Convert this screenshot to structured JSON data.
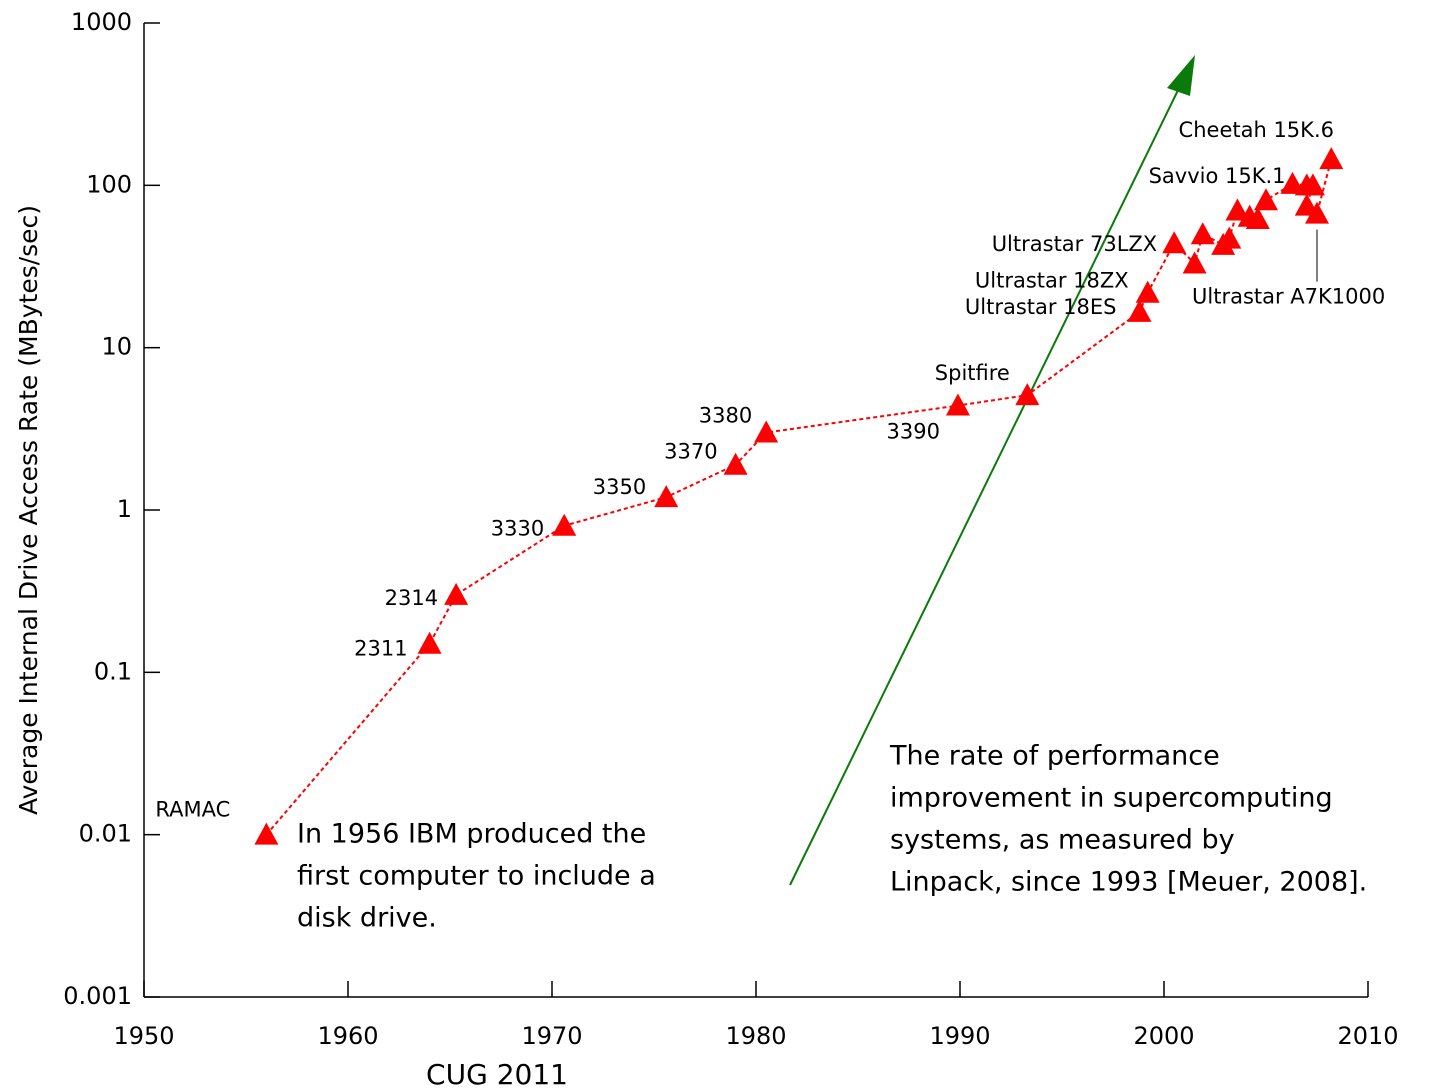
{
  "chart_data": {
    "type": "scatter",
    "y_label": "Average Internal Drive Access Rate (MBytes/sec)",
    "footer": "CUG 2011",
    "annotations": [
      [
        "In 1956 IBM produced the",
        "first computer to include a",
        "disk drive."
      ],
      [
        "The rate of performance",
        "improvement in supercomputing",
        "systems, as measured by",
        "Linpack, since 1993 [Meuer, 2008]."
      ]
    ],
    "log_y": true,
    "color": "#ff0000",
    "arrow_color": "#0a7a0a",
    "xlim": [
      1950,
      2010
    ],
    "xticks": [
      1950,
      1960,
      1970,
      1980,
      1990,
      2000,
      2010
    ],
    "ylim": [
      0.001,
      1000
    ],
    "yticks": [
      0.001,
      0.01,
      0.1,
      1,
      10,
      100,
      1000
    ],
    "x": [
      1956,
      1964,
      1965.3,
      1970.6,
      1975.6,
      1979,
      1980.5,
      1989.9,
      1993.3,
      1998.8,
      1999.2,
      2000.5,
      2001.5,
      2001.9,
      2002.9,
      2003.2,
      2003.6,
      2004.2,
      2004.6,
      2005.0,
      2006.3,
      2007.0,
      2007.3,
      2007.0,
      2007.5,
      2008.2
    ],
    "values": [
      0.01,
      0.15,
      0.3,
      0.8,
      1.2,
      1.9,
      3.0,
      4.4,
      5.1,
      16.6,
      21.8,
      44,
      33,
      50,
      43,
      47,
      70,
      64,
      62,
      81,
      102,
      100,
      100,
      75,
      67,
      145
    ],
    "labels": [
      "RAMAC",
      "2311",
      "2314",
      "3330",
      "3350",
      "3370",
      "3380",
      "3390",
      "Spitfire",
      "Ultrastar 18ES",
      "Ultrastar 18ZX",
      "Ultrastar 73LZX",
      null,
      null,
      null,
      null,
      null,
      null,
      null,
      null,
      "Savvio 15K.1",
      null,
      null,
      null,
      "Ultrastar A7K1000",
      "Cheetah 15K.6"
    ]
  }
}
